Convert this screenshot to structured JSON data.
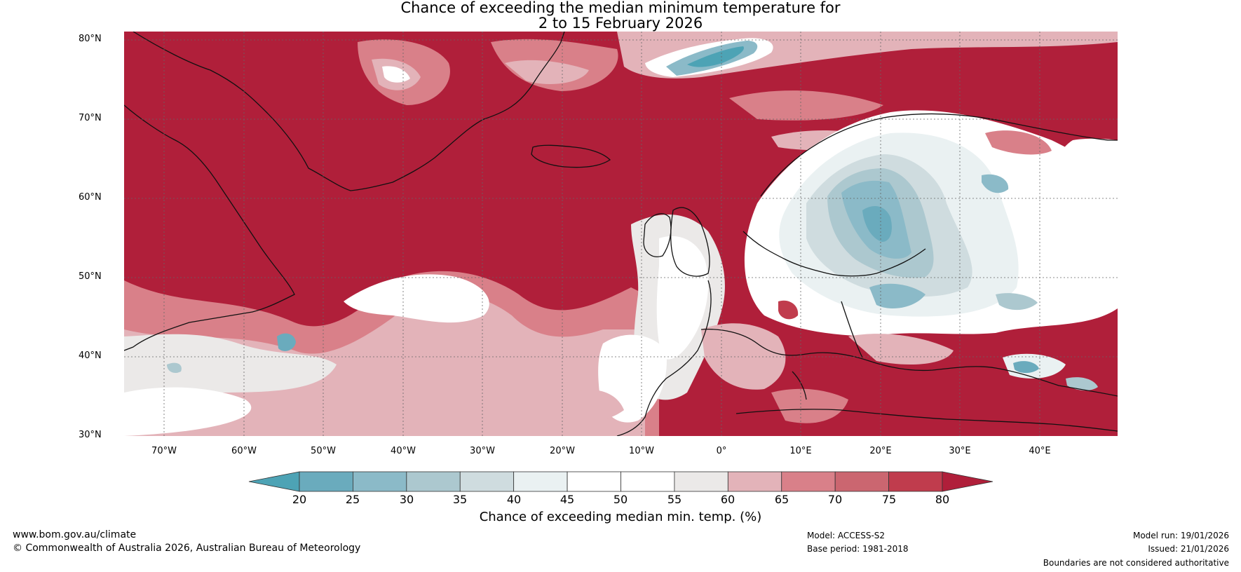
{
  "title": {
    "line1": "Chance of exceeding the median minimum temperature for",
    "line2": "2 to 15 February 2026"
  },
  "map": {
    "lat_labels": [
      "80°N",
      "70°N",
      "60°N",
      "50°N",
      "40°N",
      "30°N"
    ],
    "lon_labels": [
      "70°W",
      "60°W",
      "50°W",
      "40°W",
      "30°W",
      "20°W",
      "10°W",
      "0°",
      "10°E",
      "20°E",
      "30°E",
      "40°E"
    ]
  },
  "colorbar": {
    "ticks": [
      "20",
      "25",
      "30",
      "35",
      "40",
      "45",
      "50",
      "55",
      "60",
      "65",
      "70",
      "75",
      "80"
    ],
    "colors": [
      "#4da3b5",
      "#6aabbd",
      "#8bbac8",
      "#acc8cf",
      "#cfdcdf",
      "#eaf1f2",
      "#ffffff",
      "#ffffff",
      "#ebe9e8",
      "#e3b3b9",
      "#d98089",
      "#cb6670",
      "#c03c4d",
      "#b01f3a"
    ],
    "label": "Chance of exceeding median min. temp. (%)"
  },
  "footer": {
    "website": "www.bom.gov.au/climate",
    "copyright": "© Commonwealth of Australia 2026, Australian Bureau of Meteorology",
    "model": "Model: ACCESS-S2",
    "base_period": "Base period: 1981-2018",
    "model_run": "Model run: 19/01/2026",
    "issued": "Issued: 21/01/2026",
    "disclaimer": "Boundaries are not considered authoritative"
  }
}
